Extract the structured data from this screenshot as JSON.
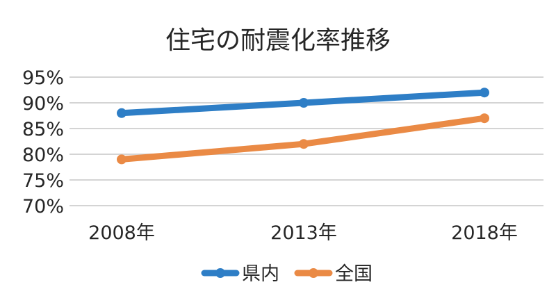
{
  "chart_data": {
    "type": "line",
    "title": "住宅の耐震化率推移",
    "categories": [
      "2008年",
      "2013年",
      "2018年"
    ],
    "series": [
      {
        "name": "県内",
        "values": [
          88,
          90,
          92
        ],
        "color": "#2e7ec6"
      },
      {
        "name": "全国",
        "values": [
          79,
          82,
          87
        ],
        "color": "#ea8a45"
      }
    ],
    "ylim": [
      70,
      95
    ],
    "yticks": [
      "95%",
      "90%",
      "85%",
      "80%",
      "75%",
      "70%"
    ],
    "ytick_values": [
      95,
      90,
      85,
      80,
      75,
      70
    ],
    "grid": true,
    "legend_position": "bottom"
  }
}
